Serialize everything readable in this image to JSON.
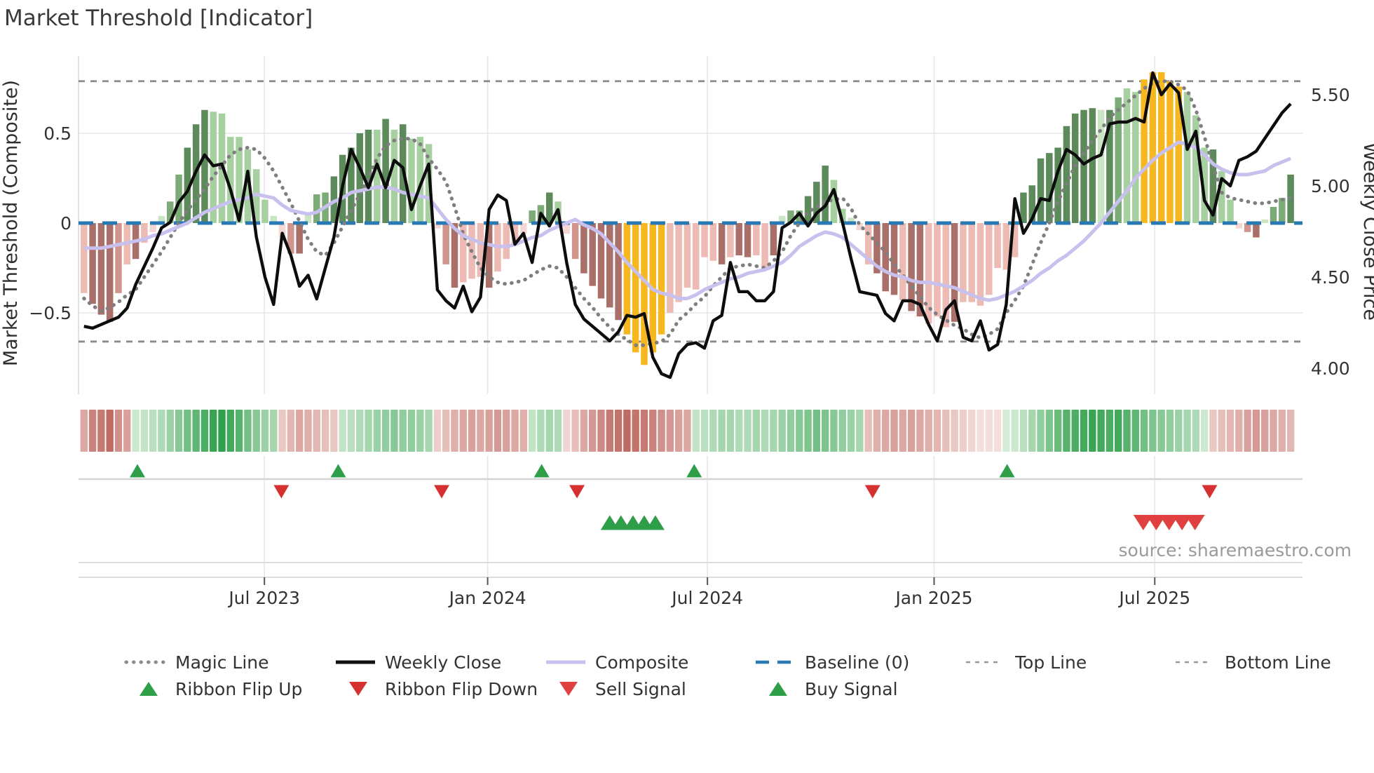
{
  "title": "Market Threshold [Indicator]",
  "source": "source: sharemaestro.com",
  "left_axis": {
    "label": "Market Threshold (Composite)",
    "ticks": [
      {
        "v": 0.5,
        "label": "0.5"
      },
      {
        "v": 0,
        "label": "0"
      },
      {
        "v": -0.5,
        "label": "−0.5"
      }
    ]
  },
  "right_axis": {
    "label": "Weekly Close Price",
    "ticks": [
      {
        "v": 5.5,
        "label": "5.50"
      },
      {
        "v": 5.0,
        "label": "5.00"
      },
      {
        "v": 4.5,
        "label": "4.50"
      },
      {
        "v": 4.0,
        "label": "4.00"
      }
    ]
  },
  "x_axis": {
    "ticks": [
      {
        "week": 21.3,
        "label": "Jul 2023"
      },
      {
        "week": 47.2,
        "label": "Jan 2024"
      },
      {
        "week": 72.7,
        "label": "Jul 2024"
      },
      {
        "week": 99.0,
        "label": "Jan 2025"
      },
      {
        "week": 124.6,
        "label": "Jul 2025"
      }
    ]
  },
  "colors": {
    "bar_palette": {
      "dg": "#5c8a5b",
      "g": "#7dab77",
      "lg": "#a7d0a0",
      "pg": "#c9e5c3",
      "au": "#f6b81e",
      "pr": "#f4d7d3",
      "lr": "#edbab4",
      "r": "#d2958e",
      "dr": "#a96f68"
    },
    "ribbon_green_lo": "#eaf5e8",
    "ribbon_green_hi": "#259b43",
    "ribbon_red_lo": "#fbedeb",
    "ribbon_red_hi": "#b4544c",
    "close_line": "#0d0d0d",
    "composite_line": "#c8c0ed",
    "magic_line": "#7f7f7f",
    "baseline": "#2878b4",
    "band_line": "#8a8a8a",
    "flip_up": "#2f9e48",
    "flip_down": "#d63131",
    "buy": "#2f9e48",
    "sell": "#e04040",
    "grid": "#e7e7ec",
    "separator": "#d4d4d4",
    "text_dark": "#333333",
    "text_muted": "#9a9a9a"
  },
  "chart_data": {
    "type": "combo-bar-line",
    "weeks": 141,
    "baseline": 0,
    "top_line": 0.79,
    "bottom_line": -0.66,
    "left_ylim": [
      -0.95,
      0.94
    ],
    "right_ylim": [
      3.9,
      5.68
    ],
    "threshold_bars": {
      "values": [
        -0.39,
        -0.45,
        -0.51,
        -0.55,
        -0.39,
        -0.23,
        -0.2,
        -0.11,
        -0.05,
        0.04,
        0.12,
        0.27,
        0.42,
        0.55,
        0.63,
        0.62,
        0.61,
        0.48,
        0.48,
        0.41,
        0.3,
        0.13,
        0.04,
        -0.08,
        -0.17,
        -0.17,
        0.05,
        0.16,
        0.17,
        0.26,
        0.38,
        0.42,
        0.5,
        0.52,
        0.52,
        0.58,
        0.52,
        0.55,
        0.47,
        0.48,
        0.44,
        -0.03,
        -0.23,
        -0.36,
        -0.33,
        -0.31,
        -0.3,
        -0.36,
        -0.27,
        -0.2,
        -0.12,
        -0.06,
        0.07,
        0.1,
        0.17,
        0.12,
        -0.06,
        -0.2,
        -0.28,
        -0.35,
        -0.42,
        -0.47,
        -0.54,
        -0.62,
        -0.72,
        -0.79,
        -0.72,
        -0.62,
        -0.5,
        -0.44,
        -0.36,
        -0.37,
        -0.19,
        -0.21,
        -0.23,
        -0.19,
        -0.18,
        -0.19,
        -0.18,
        -0.25,
        -0.18,
        0.04,
        0.07,
        0.07,
        0.15,
        0.23,
        0.32,
        0.24,
        0.08,
        0.03,
        -0.04,
        -0.23,
        -0.28,
        -0.38,
        -0.4,
        -0.43,
        -0.49,
        -0.52,
        -0.56,
        -0.52,
        -0.58,
        -0.55,
        -0.44,
        -0.44,
        -0.46,
        -0.4,
        -0.25,
        -0.26,
        -0.19,
        0.17,
        0.21,
        0.36,
        0.39,
        0.42,
        0.54,
        0.61,
        0.63,
        0.64,
        0.63,
        0.63,
        0.7,
        0.75,
        0.73,
        0.8,
        0.84,
        0.84,
        0.79,
        0.76,
        0.73,
        0.6,
        0.42,
        0.41,
        0.29,
        0.13,
        -0.03,
        -0.05,
        -0.08,
        0.02,
        0.09,
        0.14,
        0.27
      ],
      "colors": [
        "lr",
        "dr",
        "dr",
        "dr",
        "r",
        "lr",
        "dr",
        "lr",
        "pr",
        "pg",
        "g",
        "g",
        "dg",
        "dg",
        "dg",
        "lg",
        "lg",
        "lg",
        "lg",
        "lg",
        "lg",
        "lg",
        "pg",
        "pr",
        "r",
        "dr",
        "pg",
        "g",
        "g",
        "dg",
        "dg",
        "dg",
        "dg",
        "dg",
        "lg",
        "dg",
        "lg",
        "dg",
        "lg",
        "lg",
        "lg",
        "pr",
        "r",
        "dr",
        "lr",
        "lr",
        "lr",
        "dr",
        "lr",
        "lr",
        "lr",
        "pr",
        "g",
        "g",
        "dg",
        "lg",
        "pr",
        "r",
        "dr",
        "dr",
        "dr",
        "dr",
        "dr",
        "au",
        "au",
        "au",
        "au",
        "au",
        "lr",
        "lr",
        "lr",
        "lr",
        "lr",
        "lr",
        "dr",
        "lr",
        "dr",
        "dr",
        "lr",
        "lr",
        "dr",
        "pg",
        "g",
        "g",
        "dg",
        "dg",
        "dg",
        "lg",
        "lg",
        "pg",
        "pr",
        "lr",
        "dr",
        "dr",
        "dr",
        "lr",
        "dr",
        "dr",
        "lr",
        "lr",
        "lr",
        "dr",
        "lr",
        "lr",
        "lr",
        "lr",
        "lr",
        "lr",
        "lr",
        "dg",
        "dg",
        "dg",
        "dg",
        "dg",
        "dg",
        "dg",
        "dg",
        "dg",
        "pg",
        "dg",
        "g",
        "lg",
        "lg",
        "au",
        "au",
        "au",
        "au",
        "au",
        "lg",
        "lg",
        "lg",
        "dg",
        "lg",
        "lg",
        "pr",
        "r",
        "dr",
        "pg",
        "g",
        "g",
        "dg"
      ]
    },
    "weekly_close": [
      4.23,
      4.22,
      4.24,
      4.26,
      4.28,
      4.33,
      4.46,
      4.56,
      4.66,
      4.77,
      4.8,
      4.91,
      4.97,
      5.08,
      5.17,
      5.11,
      5.12,
      4.98,
      4.81,
      5.08,
      4.72,
      4.5,
      4.35,
      4.74,
      4.62,
      4.45,
      4.51,
      4.38,
      4.55,
      4.72,
      5.0,
      5.2,
      5.1,
      4.99,
      5.12,
      4.99,
      5.14,
      5.1,
      4.87,
      5.0,
      5.12,
      4.43,
      4.37,
      4.33,
      4.45,
      4.31,
      4.39,
      4.87,
      4.95,
      4.92,
      4.68,
      4.74,
      4.58,
      4.85,
      4.78,
      4.87,
      4.58,
      4.35,
      4.27,
      4.23,
      4.19,
      4.15,
      4.2,
      4.29,
      4.28,
      4.3,
      4.06,
      3.97,
      3.95,
      4.08,
      4.13,
      4.14,
      4.11,
      4.26,
      4.29,
      4.58,
      4.42,
      4.42,
      4.37,
      4.37,
      4.42,
      4.77,
      4.8,
      4.85,
      4.78,
      4.85,
      4.89,
      4.98,
      4.8,
      4.6,
      4.42,
      4.41,
      4.4,
      4.3,
      4.26,
      4.37,
      4.37,
      4.35,
      4.24,
      4.15,
      4.32,
      4.37,
      4.17,
      4.15,
      4.26,
      4.1,
      4.13,
      4.35,
      4.93,
      4.74,
      4.82,
      4.93,
      4.92,
      5.08,
      5.2,
      5.17,
      5.12,
      5.15,
      5.17,
      5.34,
      5.35,
      5.35,
      5.37,
      5.35,
      5.62,
      5.5,
      5.56,
      5.51,
      5.2,
      5.3,
      4.92,
      4.84,
      5.04,
      5.0,
      5.14,
      5.16,
      5.19,
      5.26,
      5.33,
      5.4,
      5.45
    ],
    "composite": [
      -0.14,
      -0.14,
      -0.14,
      -0.13,
      -0.12,
      -0.11,
      -0.1,
      -0.09,
      -0.07,
      -0.06,
      -0.04,
      -0.02,
      0.0,
      0.03,
      0.06,
      0.08,
      0.1,
      0.12,
      0.13,
      0.14,
      0.16,
      0.15,
      0.14,
      0.1,
      0.07,
      0.06,
      0.05,
      0.06,
      0.09,
      0.12,
      0.14,
      0.17,
      0.18,
      0.19,
      0.2,
      0.2,
      0.19,
      0.17,
      0.16,
      0.15,
      0.14,
      0.08,
      0.02,
      -0.03,
      -0.07,
      -0.09,
      -0.11,
      -0.12,
      -0.13,
      -0.13,
      -0.12,
      -0.1,
      -0.08,
      -0.07,
      -0.04,
      -0.02,
      0.0,
      0.02,
      -0.01,
      -0.03,
      -0.06,
      -0.11,
      -0.16,
      -0.22,
      -0.27,
      -0.32,
      -0.37,
      -0.39,
      -0.4,
      -0.42,
      -0.42,
      -0.4,
      -0.37,
      -0.35,
      -0.33,
      -0.31,
      -0.3,
      -0.28,
      -0.27,
      -0.26,
      -0.24,
      -0.22,
      -0.18,
      -0.13,
      -0.1,
      -0.07,
      -0.05,
      -0.06,
      -0.08,
      -0.12,
      -0.16,
      -0.2,
      -0.24,
      -0.27,
      -0.29,
      -0.3,
      -0.32,
      -0.33,
      -0.33,
      -0.34,
      -0.35,
      -0.36,
      -0.38,
      -0.4,
      -0.42,
      -0.43,
      -0.42,
      -0.4,
      -0.38,
      -0.35,
      -0.32,
      -0.28,
      -0.25,
      -0.21,
      -0.18,
      -0.14,
      -0.1,
      -0.05,
      0.0,
      0.06,
      0.12,
      0.18,
      0.25,
      0.3,
      0.35,
      0.39,
      0.42,
      0.45,
      0.44,
      0.42,
      0.38,
      0.33,
      0.3,
      0.28,
      0.27,
      0.27,
      0.28,
      0.29,
      0.32,
      0.34,
      0.36
    ],
    "magic": [
      -0.42,
      -0.46,
      -0.49,
      -0.47,
      -0.44,
      -0.4,
      -0.37,
      -0.3,
      -0.23,
      -0.16,
      -0.08,
      0.0,
      0.07,
      0.13,
      0.19,
      0.26,
      0.32,
      0.38,
      0.41,
      0.42,
      0.41,
      0.36,
      0.29,
      0.2,
      0.11,
      0.01,
      -0.09,
      -0.16,
      -0.18,
      -0.11,
      -0.02,
      0.07,
      0.16,
      0.25,
      0.36,
      0.43,
      0.46,
      0.47,
      0.47,
      0.44,
      0.36,
      0.3,
      0.23,
      0.09,
      -0.06,
      -0.16,
      -0.25,
      -0.3,
      -0.33,
      -0.34,
      -0.33,
      -0.32,
      -0.29,
      -0.26,
      -0.24,
      -0.25,
      -0.3,
      -0.36,
      -0.42,
      -0.47,
      -0.53,
      -0.58,
      -0.62,
      -0.65,
      -0.68,
      -0.68,
      -0.67,
      -0.66,
      -0.62,
      -0.54,
      -0.5,
      -0.45,
      -0.41,
      -0.35,
      -0.3,
      -0.25,
      -0.24,
      -0.23,
      -0.24,
      -0.25,
      -0.21,
      -0.16,
      -0.07,
      0.0,
      0.06,
      0.09,
      0.12,
      0.13,
      0.14,
      0.08,
      -0.01,
      -0.06,
      -0.11,
      -0.16,
      -0.23,
      -0.29,
      -0.35,
      -0.41,
      -0.47,
      -0.51,
      -0.54,
      -0.57,
      -0.59,
      -0.62,
      -0.64,
      -0.62,
      -0.59,
      -0.5,
      -0.43,
      -0.35,
      -0.23,
      -0.11,
      0.0,
      0.12,
      0.22,
      0.32,
      0.39,
      0.46,
      0.52,
      0.59,
      0.63,
      0.67,
      0.71,
      0.75,
      0.78,
      0.79,
      0.79,
      0.77,
      0.74,
      0.63,
      0.48,
      0.32,
      0.17,
      0.14,
      0.13,
      0.12,
      0.11,
      0.11,
      0.12,
      0.13,
      0.14
    ],
    "ribbon": [
      -0.45,
      -0.7,
      -0.75,
      -0.85,
      -0.6,
      -0.5,
      0.15,
      0.2,
      0.25,
      0.3,
      0.4,
      0.5,
      0.6,
      0.7,
      0.8,
      0.9,
      0.95,
      0.85,
      0.75,
      0.6,
      0.5,
      0.4,
      0.35,
      -0.25,
      -0.35,
      -0.45,
      -0.4,
      -0.35,
      -0.3,
      -0.25,
      0.2,
      0.25,
      0.3,
      0.35,
      0.4,
      0.45,
      0.5,
      0.45,
      0.45,
      0.4,
      0.35,
      -0.2,
      -0.3,
      -0.4,
      -0.45,
      -0.5,
      -0.45,
      -0.5,
      -0.55,
      -0.5,
      -0.45,
      -0.4,
      0.2,
      0.3,
      0.35,
      0.3,
      -0.15,
      -0.3,
      -0.45,
      -0.55,
      -0.65,
      -0.75,
      -0.8,
      -0.85,
      -0.8,
      -0.75,
      -0.7,
      -0.6,
      -0.55,
      -0.5,
      -0.45,
      0.2,
      0.25,
      0.3,
      0.35,
      0.35,
      0.3,
      0.3,
      0.35,
      0.3,
      0.35,
      0.4,
      0.45,
      0.5,
      0.55,
      0.6,
      0.55,
      0.5,
      0.45,
      0.4,
      0.35,
      -0.3,
      -0.4,
      -0.45,
      -0.5,
      -0.45,
      -0.5,
      -0.45,
      -0.4,
      -0.35,
      -0.3,
      -0.25,
      -0.2,
      -0.15,
      -0.1,
      -0.1,
      -0.1,
      0.1,
      0.15,
      0.25,
      0.35,
      0.45,
      0.55,
      0.65,
      0.75,
      0.8,
      0.85,
      0.9,
      0.85,
      0.8,
      0.85,
      0.75,
      0.7,
      0.6,
      0.55,
      0.5,
      0.45,
      0.4,
      0.35,
      0.3,
      0.15,
      -0.25,
      -0.3,
      -0.35,
      -0.4,
      -0.5,
      -0.55,
      -0.5,
      -0.45,
      -0.4,
      -0.35
    ],
    "signals": {
      "ribbon_flip_up_weeks": [
        6.2,
        29.5,
        53.1,
        70.8,
        107.1
      ],
      "ribbon_flip_down_weeks": [
        22.9,
        41.5,
        57.2,
        91.5,
        130.6
      ],
      "buy_signal_weeks": [
        61.0,
        62.3,
        63.7,
        65.0,
        66.3
      ],
      "sell_signal_weeks": [
        122.9,
        124.4,
        125.9,
        127.4,
        128.9
      ]
    }
  },
  "legend": {
    "row1": [
      {
        "label": "Magic Line",
        "type": "dotted",
        "color": "#8c8c8c"
      },
      {
        "label": "Weekly Close",
        "type": "solid",
        "color": "#111111"
      },
      {
        "label": "Composite",
        "type": "solid",
        "color": "#c8c0ed"
      },
      {
        "label": "Baseline (0)",
        "type": "dashed",
        "color": "#2878b4"
      },
      {
        "label": "Top Line",
        "type": "dashed-small",
        "color": "#999999"
      },
      {
        "label": "Bottom Line",
        "type": "dashed-small",
        "color": "#999999"
      }
    ],
    "row2": [
      {
        "label": "Ribbon Flip Up",
        "type": "triangle-up",
        "color": "#2f9e48"
      },
      {
        "label": "Ribbon Flip Down",
        "type": "triangle-down",
        "color": "#d63131"
      },
      {
        "label": "Sell Signal",
        "type": "triangle-down",
        "color": "#e04040"
      },
      {
        "label": "Buy Signal",
        "type": "triangle-up",
        "color": "#2f9e48"
      }
    ]
  }
}
